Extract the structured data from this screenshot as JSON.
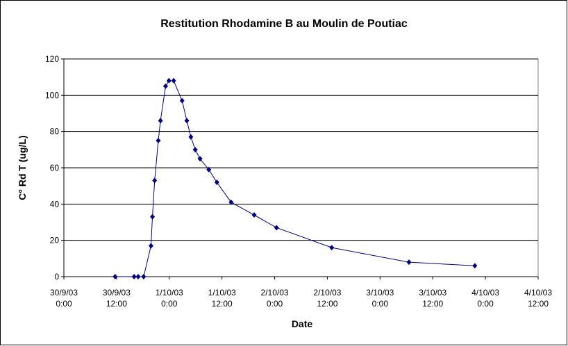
{
  "chart_data": {
    "type": "line",
    "title": "Restitution Rhodamine B au Moulin de Poutiac",
    "xlabel": "Date",
    "ylabel": "C° Rd T (ug/L)",
    "x": [
      "2003-09-30T11:40",
      "2003-09-30T16:00",
      "2003-09-30T16:55",
      "2003-09-30T18:10",
      "2003-09-30T19:50",
      "2003-09-30T20:10",
      "2003-09-30T20:40",
      "2003-09-30T21:30",
      "2003-09-30T22:00",
      "2003-09-30T23:10",
      "2003-09-30T23:55",
      "2003-10-01T01:00",
      "2003-10-01T02:55",
      "2003-10-01T04:00",
      "2003-10-01T04:55",
      "2003-10-01T05:55",
      "2003-10-01T07:00",
      "2003-10-01T09:00",
      "2003-10-01T10:50",
      "2003-10-01T14:05",
      "2003-10-01T19:20",
      "2003-10-02T00:25",
      "2003-10-02T13:00",
      "2003-10-03T06:35",
      "2003-10-03T21:35"
    ],
    "series": [
      {
        "color": "#000080",
        "values": [
          0,
          0,
          0,
          0,
          17,
          33,
          53,
          75,
          86,
          105,
          108,
          108,
          97,
          86,
          77,
          70,
          65,
          59,
          52,
          41,
          34,
          27,
          16,
          8,
          6
        ]
      }
    ],
    "xlim": [
      "2003-09-30T00:00",
      "2003-10-04T12:00"
    ],
    "xticks": [
      {
        "value": "2003-09-30T00:00",
        "label": "30/9/03 0:00"
      },
      {
        "value": "2003-09-30T12:00",
        "label": "30/9/03 12:00"
      },
      {
        "value": "2003-10-01T00:00",
        "label": "1/10/03 0:00"
      },
      {
        "value": "2003-10-01T12:00",
        "label": "1/10/03 12:00"
      },
      {
        "value": "2003-10-02T00:00",
        "label": "2/10/03 0:00"
      },
      {
        "value": "2003-10-02T12:00",
        "label": "2/10/03 12:00"
      },
      {
        "value": "2003-10-03T00:00",
        "label": "3/10/03 0:00"
      },
      {
        "value": "2003-10-03T12:00",
        "label": "3/10/03 12:00"
      },
      {
        "value": "2003-10-04T00:00",
        "label": "4/10/03 0:00"
      },
      {
        "value": "2003-10-04T12:00",
        "label": "4/10/03 12:00"
      }
    ],
    "ylim": [
      0,
      120
    ],
    "yticks": [
      0,
      20,
      40,
      60,
      80,
      100,
      120
    ],
    "grid": true
  }
}
